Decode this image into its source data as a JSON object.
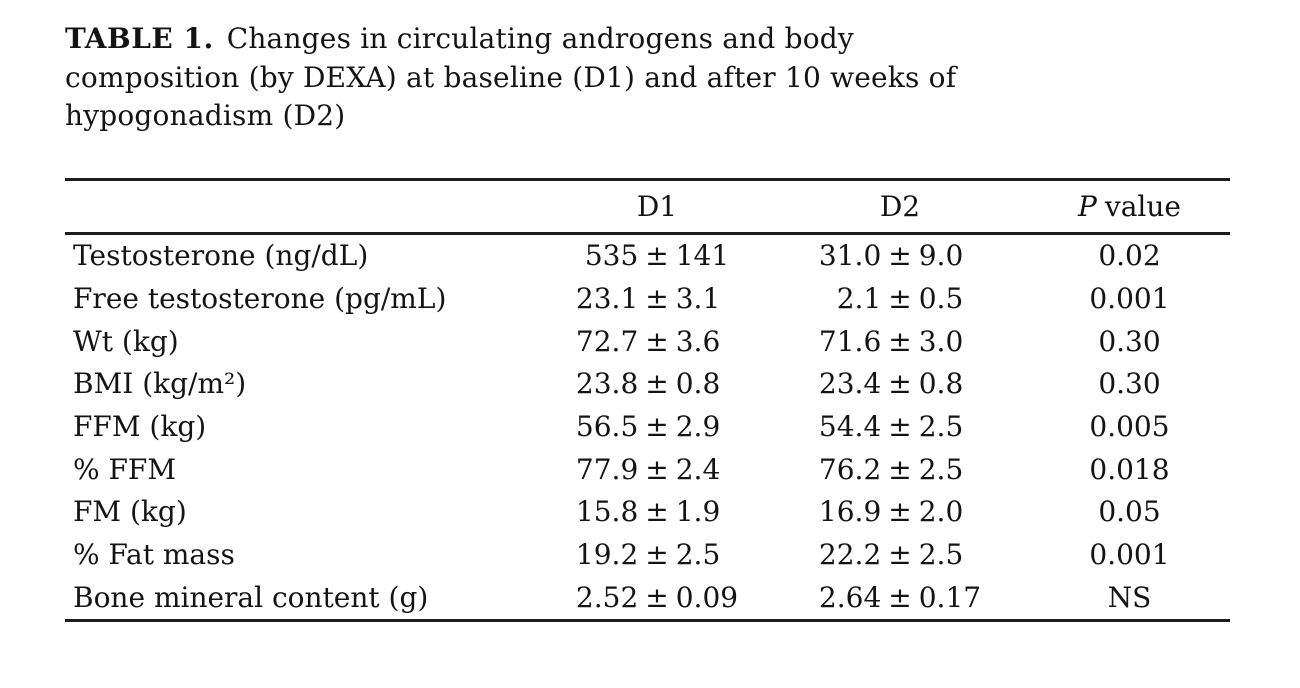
{
  "title": {
    "number": "TABLE 1.",
    "lines": [
      "Changes in circulating androgens and body",
      "composition (by DEXA) at baseline (D1) and after 10 weeks of",
      "hypogonadism (D2)"
    ]
  },
  "columns": {
    "d1": "D1",
    "d2": "D2",
    "p_italic": "P",
    "p_rest": "value"
  },
  "plus_minus": "±",
  "rows": [
    {
      "label": "Testosterone (ng/dL)",
      "d1_mean": "535",
      "d1_sd": "141",
      "d2_mean": "31.0",
      "d2_sd": "9.0",
      "p": "0.02"
    },
    {
      "label": "Free testosterone (pg/mL)",
      "d1_mean": "23.1",
      "d1_sd": "3.1",
      "d2_mean": "2.1",
      "d2_sd": "0.5",
      "p": "0.001"
    },
    {
      "label": "Wt (kg)",
      "d1_mean": "72.7",
      "d1_sd": "3.6",
      "d2_mean": "71.6",
      "d2_sd": "3.0",
      "p": "0.30"
    },
    {
      "label": "BMI (kg/m²)",
      "d1_mean": "23.8",
      "d1_sd": "0.8",
      "d2_mean": "23.4",
      "d2_sd": "0.8",
      "p": "0.30"
    },
    {
      "label": "FFM (kg)",
      "d1_mean": "56.5",
      "d1_sd": "2.9",
      "d2_mean": "54.4",
      "d2_sd": "2.5",
      "p": "0.005"
    },
    {
      "label": "% FFM",
      "d1_mean": "77.9",
      "d1_sd": "2.4",
      "d2_mean": "76.2",
      "d2_sd": "2.5",
      "p": "0.018"
    },
    {
      "label": "FM (kg)",
      "d1_mean": "15.8",
      "d1_sd": "1.9",
      "d2_mean": "16.9",
      "d2_sd": "2.0",
      "p": "0.05"
    },
    {
      "label": "% Fat mass",
      "d1_mean": "19.2",
      "d1_sd": "2.5",
      "d2_mean": "22.2",
      "d2_sd": "2.5",
      "p": "0.001"
    },
    {
      "label": "Bone mineral content (g)",
      "d1_mean": "2.52",
      "d1_sd": "0.09",
      "d2_mean": "2.64",
      "d2_sd": "0.17",
      "p": "NS"
    }
  ],
  "colors": {
    "text": "#141414",
    "rule": "#1c1c1c",
    "background": "#ffffff"
  }
}
